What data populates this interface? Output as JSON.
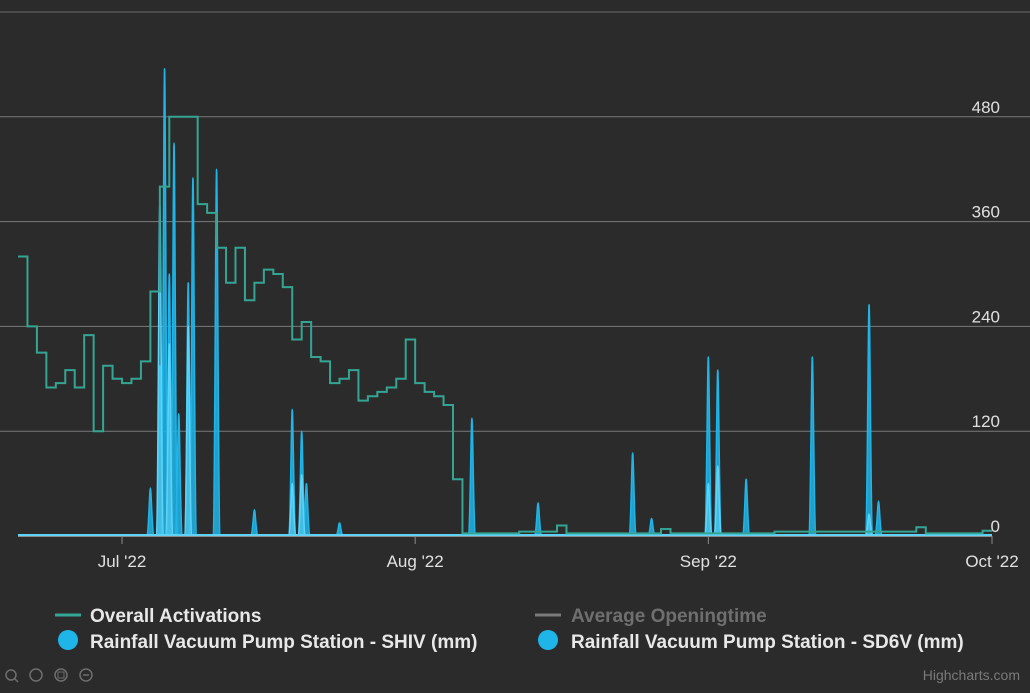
{
  "chart_data": {
    "type": "line",
    "title": "",
    "x_tick_labels": [
      "Jul '22",
      "Aug '22",
      "Sep '22",
      "Oct '22"
    ],
    "x_tick_dates": [
      "2022-07-01",
      "2022-08-01",
      "2022-09-01",
      "2022-10-01"
    ],
    "x_range": [
      "2022-06-20",
      "2022-10-01"
    ],
    "y_axis": {
      "side": "right",
      "ticks": [
        0,
        120,
        240,
        360,
        480
      ],
      "range": [
        0,
        600
      ]
    },
    "grid": true,
    "legend_position": "bottom",
    "series": [
      {
        "name": "Overall Activations",
        "kind": "step-line",
        "color": "#35a593",
        "points": [
          [
            "2022-06-20",
            320
          ],
          [
            "2022-06-21",
            240
          ],
          [
            "2022-06-22",
            210
          ],
          [
            "2022-06-23",
            170
          ],
          [
            "2022-06-24",
            175
          ],
          [
            "2022-06-25",
            190
          ],
          [
            "2022-06-26",
            170
          ],
          [
            "2022-06-27",
            230
          ],
          [
            "2022-06-28",
            120
          ],
          [
            "2022-06-29",
            195
          ],
          [
            "2022-06-30",
            180
          ],
          [
            "2022-07-01",
            175
          ],
          [
            "2022-07-02",
            180
          ],
          [
            "2022-07-03",
            200
          ],
          [
            "2022-07-04",
            280
          ],
          [
            "2022-07-05",
            400
          ],
          [
            "2022-07-06",
            480
          ],
          [
            "2022-07-07",
            480
          ],
          [
            "2022-07-08",
            480
          ],
          [
            "2022-07-09",
            380
          ],
          [
            "2022-07-10",
            370
          ],
          [
            "2022-07-11",
            330
          ],
          [
            "2022-07-12",
            290
          ],
          [
            "2022-07-13",
            330
          ],
          [
            "2022-07-14",
            270
          ],
          [
            "2022-07-15",
            290
          ],
          [
            "2022-07-16",
            305
          ],
          [
            "2022-07-17",
            300
          ],
          [
            "2022-07-18",
            285
          ],
          [
            "2022-07-19",
            225
          ],
          [
            "2022-07-20",
            245
          ],
          [
            "2022-07-21",
            205
          ],
          [
            "2022-07-22",
            200
          ],
          [
            "2022-07-23",
            175
          ],
          [
            "2022-07-24",
            180
          ],
          [
            "2022-07-25",
            190
          ],
          [
            "2022-07-26",
            155
          ],
          [
            "2022-07-27",
            160
          ],
          [
            "2022-07-28",
            165
          ],
          [
            "2022-07-29",
            170
          ],
          [
            "2022-07-30",
            180
          ],
          [
            "2022-07-31",
            225
          ],
          [
            "2022-08-01",
            175
          ],
          [
            "2022-08-02",
            165
          ],
          [
            "2022-08-03",
            160
          ],
          [
            "2022-08-04",
            150
          ],
          [
            "2022-08-05",
            65
          ],
          [
            "2022-08-06",
            3
          ],
          [
            "2022-08-12",
            5
          ],
          [
            "2022-08-16",
            12
          ],
          [
            "2022-08-17",
            3
          ],
          [
            "2022-08-27",
            8
          ],
          [
            "2022-08-28",
            3
          ],
          [
            "2022-09-08",
            5
          ],
          [
            "2022-09-23",
            10
          ],
          [
            "2022-09-24",
            3
          ],
          [
            "2022-09-30",
            6
          ],
          [
            "2022-10-01",
            6
          ]
        ]
      },
      {
        "name": "Average Openingtime",
        "kind": "line",
        "hidden": true,
        "color": "#a0a0a0",
        "points": []
      },
      {
        "name": "Rainfall Vacuum Pump Station - SHIV (mm)",
        "kind": "area",
        "color": "#1fb5e8",
        "peaks": [
          [
            "2022-07-04",
            55
          ],
          [
            "2022-07-05",
            195
          ],
          [
            "2022-07-05T12",
            535
          ],
          [
            "2022-07-06",
            300
          ],
          [
            "2022-07-06T12",
            450
          ],
          [
            "2022-07-07",
            140
          ],
          [
            "2022-07-08",
            290
          ],
          [
            "2022-07-08T12",
            410
          ],
          [
            "2022-07-11",
            420
          ],
          [
            "2022-07-15",
            30
          ],
          [
            "2022-07-19",
            145
          ],
          [
            "2022-07-20",
            120
          ],
          [
            "2022-07-20T12",
            60
          ],
          [
            "2022-07-24",
            15
          ],
          [
            "2022-08-07",
            135
          ],
          [
            "2022-08-14",
            38
          ],
          [
            "2022-08-24",
            95
          ],
          [
            "2022-08-26",
            20
          ],
          [
            "2022-09-01",
            205
          ],
          [
            "2022-09-02",
            190
          ],
          [
            "2022-09-05",
            65
          ],
          [
            "2022-09-12",
            205
          ],
          [
            "2022-09-18",
            265
          ],
          [
            "2022-09-19",
            40
          ]
        ]
      },
      {
        "name": "Rainfall Vacuum Pump Station - SD6V (mm)",
        "kind": "area",
        "color": "#5fd3f7",
        "peaks": [
          [
            "2022-07-05",
            380
          ],
          [
            "2022-07-06",
            220
          ],
          [
            "2022-07-08",
            240
          ],
          [
            "2022-07-19",
            60
          ],
          [
            "2022-07-20",
            70
          ],
          [
            "2022-09-01",
            60
          ],
          [
            "2022-09-02",
            80
          ],
          [
            "2022-09-18",
            25
          ]
        ]
      }
    ]
  },
  "legend": {
    "items": [
      {
        "label": "Overall Activations",
        "symbol": "line",
        "color": "#35a593"
      },
      {
        "label": "Average Openingtime",
        "symbol": "line",
        "color": "#8a8a8a",
        "hidden": true
      },
      {
        "label": "Rainfall Vacuum Pump Station - SHIV (mm)",
        "symbol": "circle",
        "color": "#1fb5e8"
      },
      {
        "label": "Rainfall Vacuum Pump Station - SD6V (mm)",
        "symbol": "circle",
        "color": "#1fb5e8"
      }
    ]
  },
  "credits": "Highcharts.com"
}
